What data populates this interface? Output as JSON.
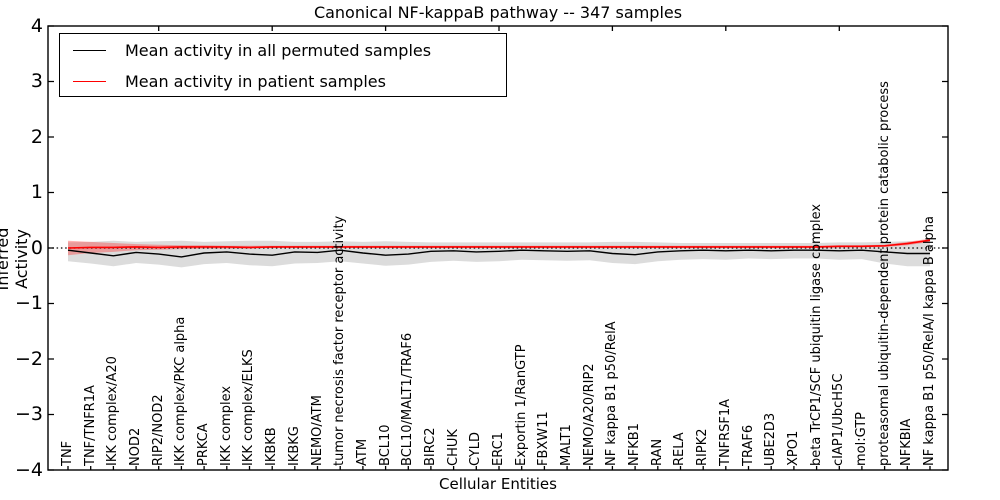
{
  "chart_data": {
    "type": "line",
    "title": "Canonical NF-kappaB pathway -- 347 samples",
    "xlabel": "Cellular Entities",
    "ylabel": "Inferred Activity",
    "ylim": [
      -4,
      4
    ],
    "ytick_values": [
      4,
      3,
      2,
      1,
      0,
      -1,
      -2,
      -3,
      -4
    ],
    "ytick_labels": [
      "4",
      "3",
      "2",
      "1",
      "0",
      "−1",
      "−2",
      "−3",
      "−4"
    ],
    "top_tick_indices": [
      4,
      9,
      14,
      19,
      24,
      29,
      34
    ],
    "grid": false,
    "legend_position": "upper left",
    "zero_reference_line": true,
    "categories": [
      "TNF",
      "TNF/TNFR1A",
      "IKK complex/A20",
      "NOD2",
      "RIP2/NOD2",
      "IKK complex/PKC alpha",
      "PRKCA",
      "IKK complex",
      "IKK complex/ELKS",
      "IKBKB",
      "IKBKG",
      "NEMO/ATM",
      "tumor necrosis factor receptor activity",
      "ATM",
      "BCL10",
      "BCL10/MALT1/TRAF6",
      "BIRC2",
      "CHUK",
      "CYLD",
      "ERC1",
      "Exportin 1/RanGTP",
      "FBXW11",
      "MALT1",
      "NEMO/A20/RIP2",
      "NF kappa B1 p50/RelA",
      "NFKB1",
      "RAN",
      "RELA",
      "RIPK2",
      "TNFRSF1A",
      "TRAF6",
      "UBE2D3",
      "XPO1",
      "beta TrCP1/SCF ubiquitin ligase complex",
      "cIAP1/UbcH5C",
      "mol:GTP",
      "proteasomal ubiquitin-dependent protein catabolic process",
      "NFKBIA",
      "NF kappa B1 p50/RelA/I kappa B alpha"
    ],
    "series": [
      {
        "name": "Mean activity in all permuted samples",
        "color": "#000000",
        "values": [
          -0.04,
          -0.09,
          -0.14,
          -0.08,
          -0.11,
          -0.16,
          -0.09,
          -0.07,
          -0.11,
          -0.13,
          -0.07,
          -0.08,
          -0.04,
          -0.09,
          -0.13,
          -0.11,
          -0.06,
          -0.05,
          -0.07,
          -0.06,
          -0.04,
          -0.05,
          -0.06,
          -0.05,
          -0.1,
          -0.12,
          -0.07,
          -0.05,
          -0.04,
          -0.05,
          -0.04,
          -0.05,
          -0.04,
          -0.04,
          -0.05,
          -0.04,
          -0.07,
          -0.1,
          -0.1
        ]
      },
      {
        "name": "Mean activity in patient samples",
        "color": "#ff0000",
        "values": [
          0.0,
          0.01,
          0.01,
          0.02,
          0.01,
          0.02,
          0.02,
          0.02,
          0.01,
          0.02,
          0.02,
          0.02,
          0.02,
          0.02,
          0.02,
          0.02,
          0.02,
          0.02,
          0.02,
          0.02,
          0.02,
          0.02,
          0.02,
          0.02,
          0.02,
          0.02,
          0.02,
          0.02,
          0.02,
          0.02,
          0.02,
          0.02,
          0.02,
          0.02,
          0.03,
          0.03,
          0.04,
          0.08,
          0.14
        ]
      }
    ],
    "uncertainty_bands": [
      {
        "name": "permuted-confidence-band",
        "color": "rgba(115,115,115,0.25)",
        "upper": [
          0.1,
          0.11,
          0.13,
          0.11,
          0.12,
          0.13,
          0.11,
          0.12,
          0.13,
          0.13,
          0.11,
          0.11,
          0.12,
          0.11,
          0.12,
          0.11,
          0.1,
          0.1,
          0.1,
          0.1,
          0.1,
          0.1,
          0.1,
          0.1,
          0.11,
          0.11,
          0.1,
          0.09,
          0.09,
          0.09,
          0.09,
          0.09,
          0.09,
          0.09,
          0.1,
          0.1,
          0.11,
          0.12,
          0.12
        ],
        "lower": [
          -0.24,
          -0.28,
          -0.33,
          -0.27,
          -0.3,
          -0.35,
          -0.29,
          -0.27,
          -0.31,
          -0.33,
          -0.28,
          -0.27,
          -0.24,
          -0.28,
          -0.32,
          -0.3,
          -0.25,
          -0.23,
          -0.25,
          -0.24,
          -0.21,
          -0.22,
          -0.23,
          -0.22,
          -0.27,
          -0.29,
          -0.24,
          -0.21,
          -0.2,
          -0.21,
          -0.19,
          -0.2,
          -0.19,
          -0.19,
          -0.21,
          -0.2,
          -0.28,
          -0.33,
          -0.33
        ]
      },
      {
        "name": "patient-confidence-band",
        "color": "rgba(255,35,35,0.35)",
        "upper": [
          0.13,
          0.11,
          0.09,
          0.07,
          0.06,
          0.05,
          0.05,
          0.04,
          0.04,
          0.04,
          0.04,
          0.04,
          0.04,
          0.04,
          0.04,
          0.04,
          0.04,
          0.04,
          0.04,
          0.04,
          0.04,
          0.04,
          0.04,
          0.04,
          0.04,
          0.04,
          0.04,
          0.04,
          0.04,
          0.04,
          0.04,
          0.04,
          0.04,
          0.04,
          0.05,
          0.05,
          0.06,
          0.11,
          0.17
        ],
        "lower": [
          -0.13,
          -0.09,
          -0.07,
          -0.04,
          -0.03,
          -0.02,
          -0.01,
          -0.01,
          -0.01,
          0.0,
          0.0,
          0.0,
          0.0,
          0.0,
          0.0,
          0.0,
          0.0,
          0.0,
          0.0,
          0.0,
          0.0,
          0.0,
          0.0,
          0.0,
          0.0,
          0.0,
          0.0,
          0.0,
          0.0,
          0.0,
          0.0,
          0.0,
          0.0,
          0.0,
          0.01,
          0.01,
          0.02,
          0.05,
          0.11
        ]
      }
    ]
  }
}
